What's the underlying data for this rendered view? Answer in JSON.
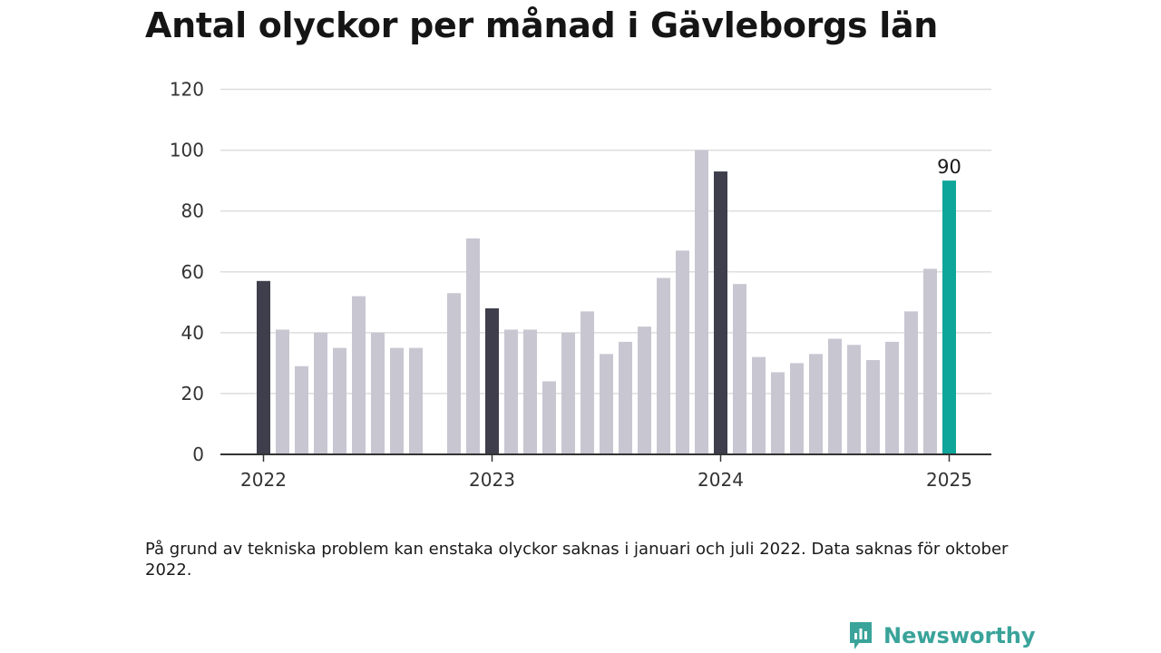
{
  "title": "Antal olyckor per månad i Gävleborgs län",
  "note": "På grund av tekniska problem kan enstaka olyckor saknas i januari och juli 2022. Data saknas för oktober 2022.",
  "brand": {
    "name": "Newsworthy",
    "icon": "newsworthy-bar-logo-icon"
  },
  "colors": {
    "default": "#c8c6d1",
    "january": "#3f3e4c",
    "latest": "#0ea69a",
    "grid": "#dddddd",
    "axis": "#333333",
    "brand": "#3aa39a"
  },
  "chart_data": {
    "type": "bar",
    "title": "Antal olyckor per månad i Gävleborgs län",
    "ylim": [
      0,
      120
    ],
    "yticks": [
      0,
      20,
      40,
      60,
      80,
      100,
      120
    ],
    "grid": true,
    "x_tick_labels": [
      {
        "label": "2022",
        "month": "2022-01"
      },
      {
        "label": "2023",
        "month": "2023-01"
      },
      {
        "label": "2024",
        "month": "2024-01"
      },
      {
        "label": "2025",
        "month": "2025-01"
      }
    ],
    "highlight_label": {
      "month": "2025-01",
      "text": "90"
    },
    "months": [
      "2022-01",
      "2022-02",
      "2022-03",
      "2022-04",
      "2022-05",
      "2022-06",
      "2022-07",
      "2022-08",
      "2022-09",
      "2022-10",
      "2022-11",
      "2022-12",
      "2023-01",
      "2023-02",
      "2023-03",
      "2023-04",
      "2023-05",
      "2023-06",
      "2023-07",
      "2023-08",
      "2023-09",
      "2023-10",
      "2023-11",
      "2023-12",
      "2024-01",
      "2024-02",
      "2024-03",
      "2024-04",
      "2024-05",
      "2024-06",
      "2024-07",
      "2024-08",
      "2024-09",
      "2024-10",
      "2024-11",
      "2024-12",
      "2025-01"
    ],
    "values": [
      57,
      41,
      29,
      40,
      35,
      52,
      40,
      35,
      35,
      null,
      53,
      71,
      48,
      41,
      41,
      24,
      40,
      47,
      33,
      37,
      42,
      58,
      67,
      100,
      93,
      56,
      32,
      27,
      30,
      33,
      38,
      36,
      31,
      37,
      47,
      61,
      90
    ]
  }
}
